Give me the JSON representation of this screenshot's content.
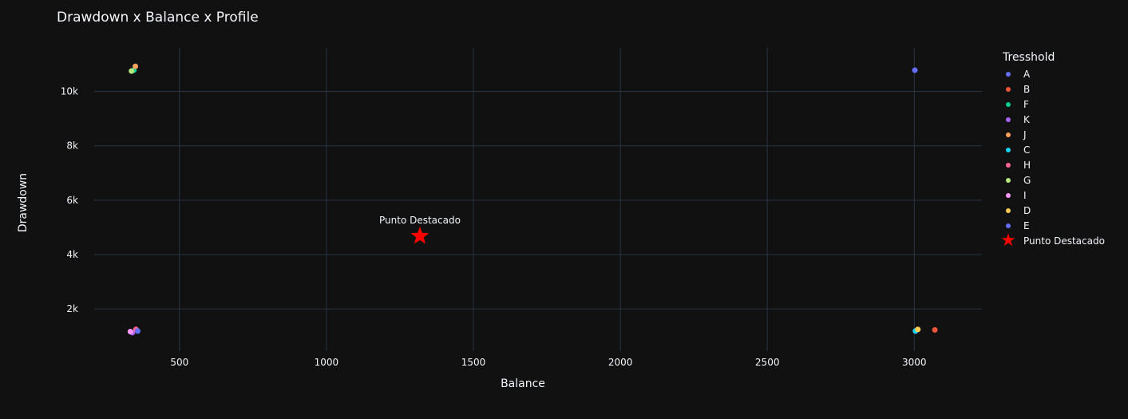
{
  "chart_data": {
    "type": "scatter",
    "title": "Drawdown x Balance x Profile",
    "xlabel": "Balance",
    "ylabel": "Drawdown",
    "xlim": [
      210,
      3230
    ],
    "ylim": [
      450,
      11600
    ],
    "x_ticks": [
      500,
      1000,
      1500,
      2000,
      2500,
      3000
    ],
    "y_ticks": [
      2000,
      4000,
      6000,
      8000,
      10000
    ],
    "y_tick_labels": [
      "2k",
      "4k",
      "6k",
      "8k",
      "10k"
    ],
    "grid": true,
    "legend_title": "Tresshold",
    "legend_position": "right",
    "series": [
      {
        "name": "A",
        "color": "#636efa",
        "points": [
          [
            3002,
            10780
          ]
        ]
      },
      {
        "name": "B",
        "color": "#EF553B",
        "points": [
          [
            3070,
            1230
          ]
        ]
      },
      {
        "name": "F",
        "color": "#00cc96",
        "points": [
          [
            345,
            10780
          ]
        ]
      },
      {
        "name": "K",
        "color": "#ab63fa",
        "points": [
          [
            340,
            1130
          ]
        ]
      },
      {
        "name": "J",
        "color": "#FFA15A",
        "points": [
          [
            350,
            10920
          ]
        ]
      },
      {
        "name": "C",
        "color": "#19d3f3",
        "points": [
          [
            3004,
            1190
          ]
        ]
      },
      {
        "name": "H",
        "color": "#FF6692",
        "points": [
          [
            352,
            1250
          ]
        ]
      },
      {
        "name": "G",
        "color": "#B6E880",
        "points": [
          [
            337,
            10750
          ]
        ]
      },
      {
        "name": "I",
        "color": "#FF97FF",
        "points": [
          [
            333,
            1170
          ]
        ]
      },
      {
        "name": "D",
        "color": "#FECB52",
        "points": [
          [
            3012,
            1250
          ]
        ]
      },
      {
        "name": "E",
        "color": "#636efa",
        "points": [
          [
            358,
            1190
          ]
        ]
      }
    ],
    "highlight": {
      "name": "Punto Destacado",
      "label": "Punto Destacado",
      "color": "#ff0000",
      "x": 1318,
      "y": 4680
    }
  }
}
